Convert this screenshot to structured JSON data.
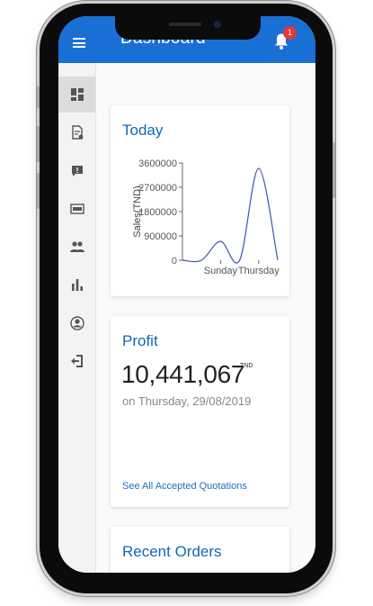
{
  "app_bar": {
    "title": "Dashboard",
    "menu_icon": "menu-icon",
    "notification_icon": "bell-icon",
    "notification_count": "1",
    "color": "#1a6fd4"
  },
  "sidebar": {
    "items": [
      {
        "icon": "dashboard-icon",
        "active": true
      },
      {
        "icon": "quotation-icon",
        "active": false
      },
      {
        "icon": "feedback-icon",
        "active": false
      },
      {
        "icon": "sold-icon",
        "active": false
      },
      {
        "icon": "people-icon",
        "active": false
      },
      {
        "icon": "bar-chart-icon",
        "active": false
      },
      {
        "icon": "account-icon",
        "active": false
      },
      {
        "icon": "logout-icon",
        "active": false
      }
    ]
  },
  "today_card": {
    "title": "Today"
  },
  "profit_card": {
    "title": "Profit",
    "value": "10,441,067",
    "unit": "TND",
    "date": "on Thursday, 29/08/2019",
    "link": "See All Accepted Quotations"
  },
  "orders_card": {
    "title": "Recent Orders"
  },
  "chart_data": {
    "type": "line",
    "ylabel": "Sales(TND)",
    "x_tick_labels": [
      "Sunday",
      "Thursday"
    ],
    "y_ticks": [
      0,
      900000,
      1800000,
      2700000,
      3600000
    ],
    "y_tick_labels": [
      "0",
      "900000",
      "1800000",
      "2700000",
      "3600000"
    ],
    "ylim": [
      0,
      3600000
    ],
    "series": [
      {
        "x": [
          0,
          1,
          2,
          3,
          4,
          5
        ],
        "values": [
          0,
          0,
          700000,
          0,
          3400000,
          0
        ]
      }
    ],
    "xlim": [
      0,
      5
    ],
    "line_color": "#3f51b5"
  }
}
